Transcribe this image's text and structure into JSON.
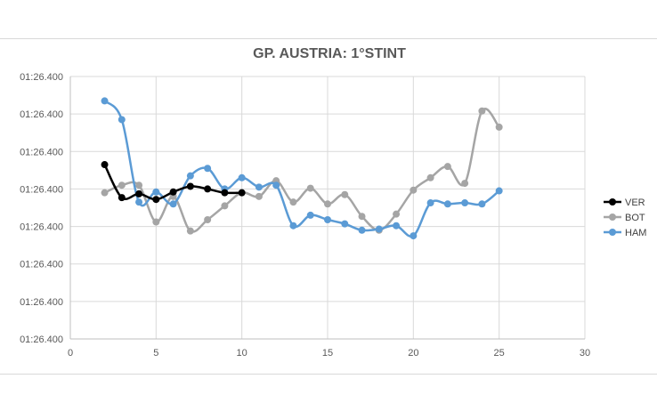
{
  "chart_data": {
    "type": "line",
    "title": "GP. AUSTRIA: 1°STINT",
    "xlabel": "",
    "ylabel": "",
    "xlim": [
      0,
      30
    ],
    "xticks": [
      0,
      5,
      10,
      15,
      20,
      25,
      30
    ],
    "yticks": [
      "01:26.400",
      "01:26.400",
      "01:26.400",
      "01:26.400",
      "01:26.400",
      "01:26.400",
      "01:26.400",
      "01:26.400"
    ],
    "ylim": [
      0,
      7
    ],
    "grid": true,
    "legend": "right",
    "series": [
      {
        "name": "VER",
        "color": "#000000",
        "x": [
          2,
          3,
          4,
          5,
          6,
          7,
          8,
          9,
          10
        ],
        "y": [
          4.65,
          3.77,
          3.87,
          3.72,
          3.92,
          4.07,
          4.0,
          3.9,
          3.9
        ]
      },
      {
        "name": "BOT",
        "color": "#a5a5a5",
        "x": [
          2,
          3,
          4,
          5,
          6,
          7,
          8,
          9,
          10,
          11,
          12,
          13,
          14,
          15,
          16,
          17,
          18,
          19,
          20,
          21,
          22,
          23,
          24,
          25
        ],
        "y": [
          3.9,
          4.1,
          4.1,
          3.12,
          3.8,
          2.88,
          3.18,
          3.55,
          3.9,
          3.8,
          4.22,
          3.65,
          4.02,
          3.6,
          3.85,
          3.27,
          2.9,
          3.33,
          3.97,
          4.3,
          4.6,
          4.15,
          6.08,
          5.65
        ]
      },
      {
        "name": "HAM",
        "color": "#5b9bd5",
        "x": [
          2,
          3,
          4,
          5,
          6,
          7,
          8,
          9,
          10,
          11,
          12,
          13,
          14,
          15,
          16,
          17,
          18,
          19,
          20,
          21,
          22,
          23,
          24,
          25
        ],
        "y": [
          6.35,
          5.85,
          3.65,
          3.92,
          3.6,
          4.35,
          4.55,
          4.0,
          4.3,
          4.05,
          4.1,
          3.02,
          3.3,
          3.18,
          3.07,
          2.9,
          2.93,
          3.02,
          2.75,
          3.63,
          3.6,
          3.63,
          3.6,
          3.95
        ]
      }
    ]
  }
}
